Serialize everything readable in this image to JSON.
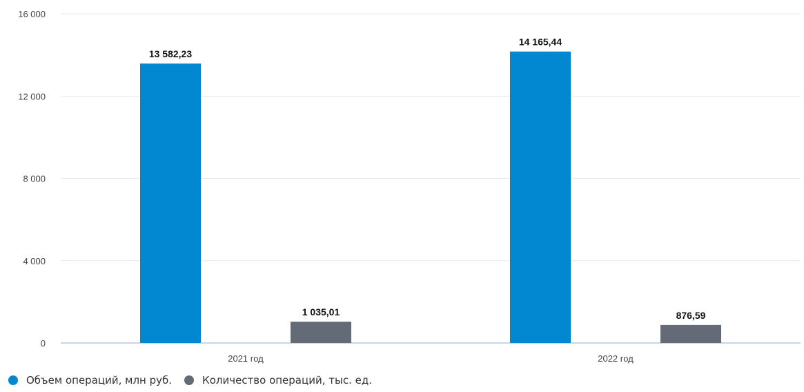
{
  "chart_data": {
    "type": "bar",
    "categories": [
      "2021 год",
      "2022 год"
    ],
    "series": [
      {
        "name": "Объем операций, млн руб.",
        "values": [
          13582.23,
          14165.44
        ],
        "labels": [
          "13 582,23",
          "14 165,44"
        ],
        "color": "#0288d1"
      },
      {
        "name": "Количество операций, тыс. ед.",
        "values": [
          1035.01,
          876.59
        ],
        "labels": [
          "1 035,01",
          "876,59"
        ],
        "color": "#646b76"
      }
    ],
    "ylim": [
      0,
      16000
    ],
    "yticks": [
      0,
      4000,
      8000,
      12000,
      16000
    ],
    "ytick_labels": [
      "0",
      "4 000",
      "8 000",
      "12 000",
      "16 000"
    ],
    "grid": true,
    "legend": "bottom-left"
  }
}
